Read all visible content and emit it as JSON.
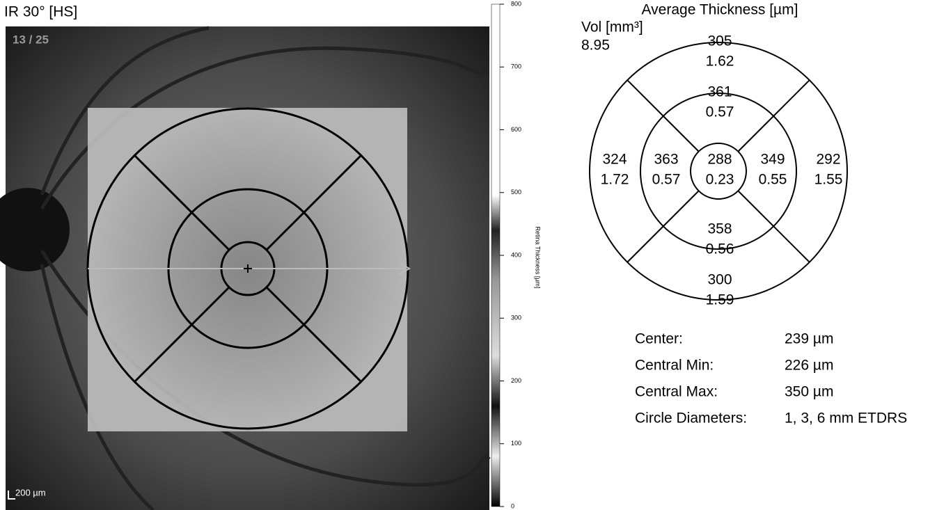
{
  "image": {
    "title": "IR 30° [HS]",
    "frame": "13 / 25",
    "scale_bar": "200 µm"
  },
  "colorbar": {
    "label": "Retina Thickness [µm]",
    "ticks": [
      0,
      100,
      200,
      300,
      400,
      500,
      600,
      700,
      800
    ]
  },
  "etdrs": {
    "title": "Average Thickness [µm]",
    "volume_label": "Vol [mm³]",
    "volume": 8.95,
    "sectors": [
      {
        "thickness": 305,
        "volume": 1.62
      },
      {
        "thickness": 361,
        "volume": 0.57
      },
      {
        "thickness": 324,
        "volume": 1.72
      },
      {
        "thickness": 363,
        "volume": 0.57
      },
      {
        "thickness": 288,
        "volume": 0.23
      },
      {
        "thickness": 349,
        "volume": 0.55
      },
      {
        "thickness": 292,
        "volume": 1.55
      },
      {
        "thickness": 358,
        "volume": 0.56
      },
      {
        "thickness": 300,
        "volume": 1.59
      }
    ]
  },
  "summary": [
    {
      "label": "Center:",
      "value": "239 µm"
    },
    {
      "label": "Central Min:",
      "value": "226 µm"
    },
    {
      "label": "Central Max:",
      "value": "350 µm"
    },
    {
      "label": "Circle Diameters:",
      "value": "1, 3, 6 mm ETDRS"
    }
  ]
}
